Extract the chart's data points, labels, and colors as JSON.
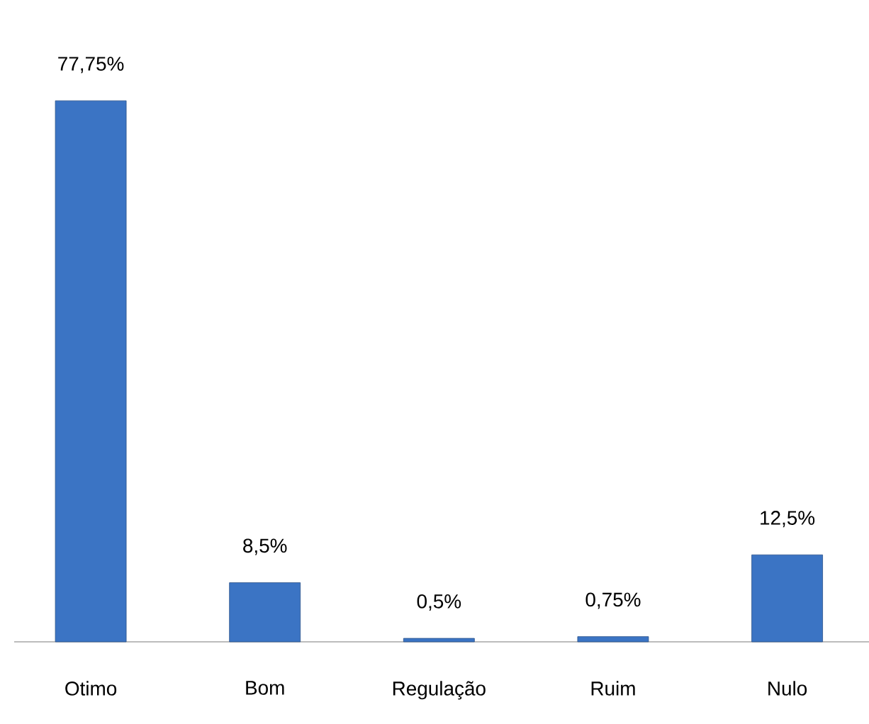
{
  "chart_data": {
    "type": "bar",
    "categories": [
      "Otimo",
      "Bom",
      "Regulação",
      "Ruim",
      "Nulo"
    ],
    "values": [
      77.75,
      8.5,
      0.5,
      0.75,
      12.5
    ],
    "value_labels": [
      "77,75%",
      "8,5%",
      "0,5%",
      "0,75%",
      "12,5%"
    ],
    "color": "#3b74c4"
  }
}
